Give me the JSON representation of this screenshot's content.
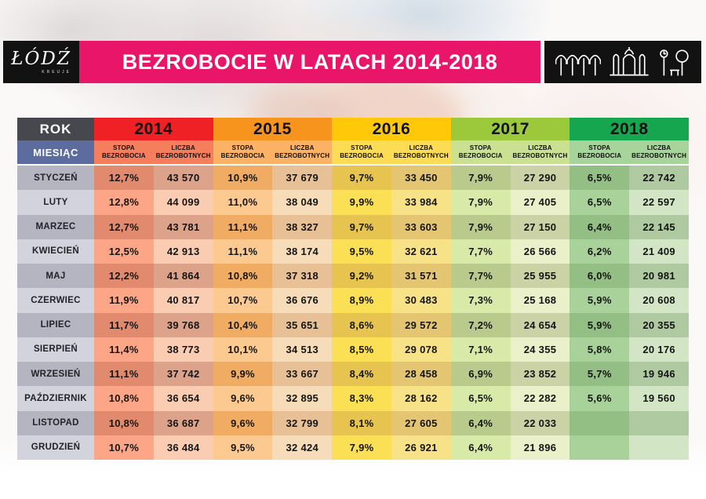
{
  "header": {
    "logo_text": "ŁÓDŹ",
    "logo_subtext": "KREUJE",
    "title": "BEZROBOCIE W LATACH 2014-2018",
    "banner_color": "#E91568",
    "box_color": "#121212",
    "icons": [
      "unicorn-stable-icon",
      "city-gate-icon",
      "park-icon"
    ]
  },
  "table": {
    "colors": {
      "rok_bg": "#47474E",
      "miesiac_bg": "#5D6C9F",
      "month_odd": "#B5B5C1",
      "month_even": "#D3D3DD",
      "gap": "#FFFFFF",
      "years": [
        {
          "head": "#EF2125",
          "sub": "#F57E5D",
          "stopa_odd": "#E18A6E",
          "stopa_even": "#FCA687",
          "liczba_odd": "#DDA28A",
          "liczba_even": "#FACDB3"
        },
        {
          "head": "#F7941E",
          "sub": "#FBB264",
          "stopa_odd": "#EFAC62",
          "stopa_even": "#FCCA90",
          "liczba_odd": "#E7C095",
          "liczba_even": "#F6DCB8"
        },
        {
          "head": "#FFC90A",
          "sub": "#FCDC55",
          "stopa_odd": "#E7C450",
          "stopa_even": "#FBDF55",
          "liczba_odd": "#E4C571",
          "liczba_even": "#F8E288"
        },
        {
          "head": "#9CC93C",
          "sub": "#C9E190",
          "stopa_odd": "#B8CB8C",
          "stopa_even": "#D7EAA8",
          "liczba_odd": "#CBD2A5",
          "liczba_even": "#E9F0CA"
        },
        {
          "head": "#17A650",
          "sub": "#A7D49A",
          "stopa_odd": "#93BE84",
          "stopa_even": "#A9D29B",
          "liczba_odd": "#AFC9A1",
          "liczba_even": "#D2E5C5"
        }
      ]
    }
  },
  "chart_data": {
    "type": "table",
    "title": "BEZROBOCIE W LATACH 2014-2018",
    "row_header_label": "ROK",
    "month_header_label": "MIESIĄC",
    "metrics": [
      "STOPA BEZROBOCIA",
      "LICZBA BEZROBOTNYCH"
    ],
    "years": [
      "2014",
      "2015",
      "2016",
      "2017",
      "2018"
    ],
    "rows": [
      {
        "month": "STYCZEŃ",
        "values": [
          [
            "12,7%",
            "43 570"
          ],
          [
            "10,9%",
            "37 679"
          ],
          [
            "9,7%",
            "33 450"
          ],
          [
            "7,9%",
            "27 290"
          ],
          [
            "6,5%",
            "22 742"
          ]
        ]
      },
      {
        "month": "LUTY",
        "values": [
          [
            "12,8%",
            "44 099"
          ],
          [
            "11,0%",
            "38 049"
          ],
          [
            "9,9%",
            "33 984"
          ],
          [
            "7,9%",
            "27 405"
          ],
          [
            "6,5%",
            "22 597"
          ]
        ]
      },
      {
        "month": "MARZEC",
        "values": [
          [
            "12,7%",
            "43 781"
          ],
          [
            "11,1%",
            "38 327"
          ],
          [
            "9,7%",
            "33 603"
          ],
          [
            "7,9%",
            "27 150"
          ],
          [
            "6,4%",
            "22 145"
          ]
        ]
      },
      {
        "month": "KWIECIEŃ",
        "values": [
          [
            "12,5%",
            "42 913"
          ],
          [
            "11,1%",
            "38 174"
          ],
          [
            "9,5%",
            "32 621"
          ],
          [
            "7,7%",
            "26 566"
          ],
          [
            "6,2%",
            "21 409"
          ]
        ]
      },
      {
        "month": "MAJ",
        "values": [
          [
            "12,2%",
            "41 864"
          ],
          [
            "10,8%",
            "37 318"
          ],
          [
            "9,2%",
            "31 571"
          ],
          [
            "7,7%",
            "25 955"
          ],
          [
            "6,0%",
            "20 981"
          ]
        ]
      },
      {
        "month": "CZERWIEC",
        "values": [
          [
            "11,9%",
            "40 817"
          ],
          [
            "10,7%",
            "36 676"
          ],
          [
            "8,9%",
            "30 483"
          ],
          [
            "7,3%",
            "25 168"
          ],
          [
            "5,9%",
            "20 608"
          ]
        ]
      },
      {
        "month": "LIPIEC",
        "values": [
          [
            "11,7%",
            "39 768"
          ],
          [
            "10,4%",
            "35 651"
          ],
          [
            "8,6%",
            "29 572"
          ],
          [
            "7,2%",
            "24 654"
          ],
          [
            "5,9%",
            "20 355"
          ]
        ]
      },
      {
        "month": "SIERPIEŃ",
        "values": [
          [
            "11,4%",
            "38 773"
          ],
          [
            "10,1%",
            "34 513"
          ],
          [
            "8,5%",
            "29 078"
          ],
          [
            "7,1%",
            "24 355"
          ],
          [
            "5,8%",
            "20 176"
          ]
        ]
      },
      {
        "month": "WRZESIEŃ",
        "values": [
          [
            "11,1%",
            "37 742"
          ],
          [
            "9,9%",
            "33 667"
          ],
          [
            "8,4%",
            "28 458"
          ],
          [
            "6,9%",
            "23 852"
          ],
          [
            "5,7%",
            "19 946"
          ]
        ]
      },
      {
        "month": "PAŹDZIERNIK",
        "values": [
          [
            "10,8%",
            "36 654"
          ],
          [
            "9,6%",
            "32 895"
          ],
          [
            "8,3%",
            "28 162"
          ],
          [
            "6,5%",
            "22 282"
          ],
          [
            "5,6%",
            "19 560"
          ]
        ]
      },
      {
        "month": "LISTOPAD",
        "values": [
          [
            "10,8%",
            "36 687"
          ],
          [
            "9,6%",
            "32 799"
          ],
          [
            "8,1%",
            "27 605"
          ],
          [
            "6,4%",
            "22 033"
          ],
          [
            "",
            ""
          ]
        ]
      },
      {
        "month": "GRUDZIEŃ",
        "values": [
          [
            "10,7%",
            "36 484"
          ],
          [
            "9,5%",
            "32 424"
          ],
          [
            "7,9%",
            "26 921"
          ],
          [
            "6,4%",
            "21 896"
          ],
          [
            "",
            ""
          ]
        ]
      }
    ]
  }
}
